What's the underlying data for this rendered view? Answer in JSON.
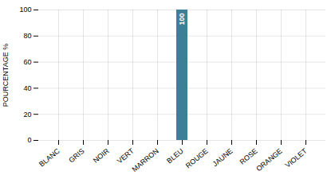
{
  "chart_data": {
    "type": "bar",
    "categories": [
      "BLANC",
      "GRIS",
      "NOIR",
      "VERT",
      "MARRON",
      "BLEU",
      "ROUGE",
      "JAUNE",
      "ROSE",
      "ORANGE",
      "VIOLET"
    ],
    "values": [
      0,
      0,
      0,
      0,
      0,
      100,
      0,
      0,
      0,
      0,
      0
    ],
    "color": "#3d7f96",
    "ylabel": "POURCENTAGE %",
    "ylim": [
      0,
      100
    ],
    "yticks": [
      0,
      20,
      40,
      60,
      80,
      100
    ],
    "grid": true,
    "data_labels": true
  }
}
